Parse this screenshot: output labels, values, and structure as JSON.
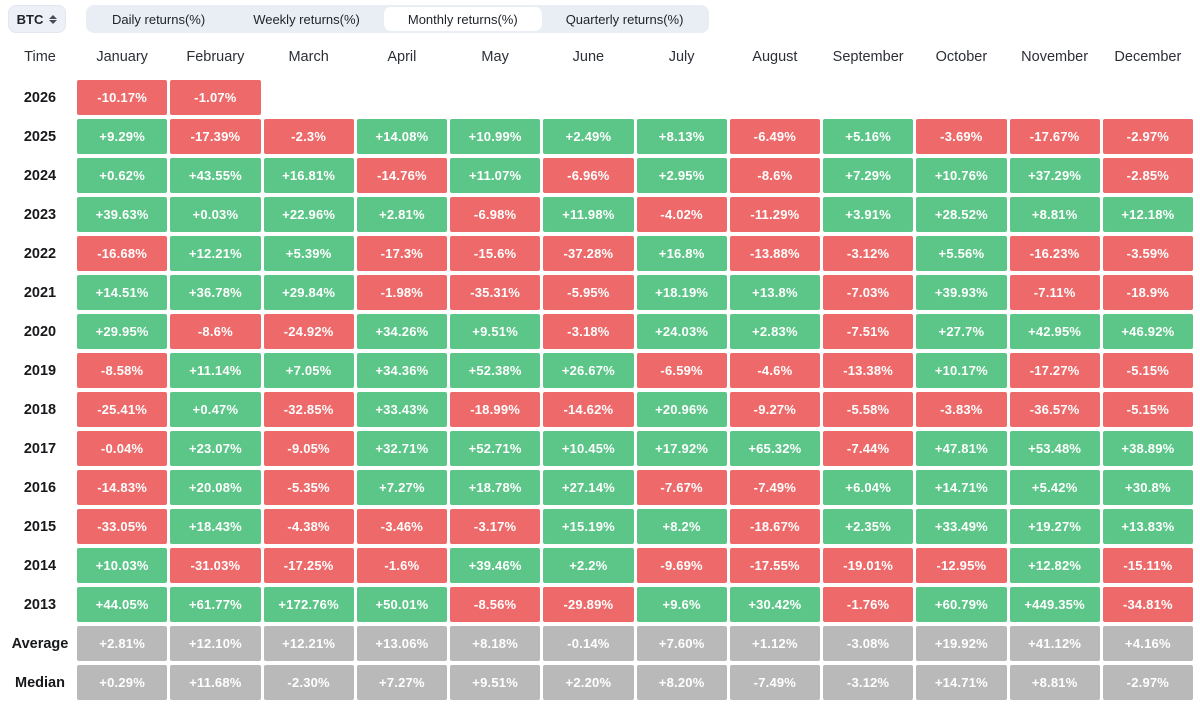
{
  "controls": {
    "symbol_select": {
      "value": "BTC"
    },
    "tabs": [
      {
        "label": "Daily returns(%)",
        "active": false
      },
      {
        "label": "Weekly returns(%)",
        "active": false
      },
      {
        "label": "Monthly returns(%)",
        "active": true
      },
      {
        "label": "Quarterly returns(%)",
        "active": false
      }
    ]
  },
  "colors": {
    "positive": "#5cc688",
    "negative": "#ee6a6a",
    "neutral": "#b9b9b9",
    "tabbar_bg": "#e9edf4",
    "active_tab_bg": "#ffffff",
    "select_bg": "#edf0f7"
  },
  "chart_data": {
    "type": "heatmap",
    "title": "Monthly returns(%)",
    "columns": [
      "Time",
      "January",
      "February",
      "March",
      "April",
      "May",
      "June",
      "July",
      "August",
      "September",
      "October",
      "November",
      "December"
    ],
    "rows": [
      {
        "label": "2026",
        "neutral": false,
        "values": [
          "-10.17%",
          "-1.07%",
          null,
          null,
          null,
          null,
          null,
          null,
          null,
          null,
          null,
          null
        ]
      },
      {
        "label": "2025",
        "neutral": false,
        "values": [
          "+9.29%",
          "-17.39%",
          "-2.3%",
          "+14.08%",
          "+10.99%",
          "+2.49%",
          "+8.13%",
          "-6.49%",
          "+5.16%",
          "-3.69%",
          "-17.67%",
          "-2.97%"
        ]
      },
      {
        "label": "2024",
        "neutral": false,
        "values": [
          "+0.62%",
          "+43.55%",
          "+16.81%",
          "-14.76%",
          "+11.07%",
          "-6.96%",
          "+2.95%",
          "-8.6%",
          "+7.29%",
          "+10.76%",
          "+37.29%",
          "-2.85%"
        ]
      },
      {
        "label": "2023",
        "neutral": false,
        "values": [
          "+39.63%",
          "+0.03%",
          "+22.96%",
          "+2.81%",
          "-6.98%",
          "+11.98%",
          "-4.02%",
          "-11.29%",
          "+3.91%",
          "+28.52%",
          "+8.81%",
          "+12.18%"
        ]
      },
      {
        "label": "2022",
        "neutral": false,
        "values": [
          "-16.68%",
          "+12.21%",
          "+5.39%",
          "-17.3%",
          "-15.6%",
          "-37.28%",
          "+16.8%",
          "-13.88%",
          "-3.12%",
          "+5.56%",
          "-16.23%",
          "-3.59%"
        ]
      },
      {
        "label": "2021",
        "neutral": false,
        "values": [
          "+14.51%",
          "+36.78%",
          "+29.84%",
          "-1.98%",
          "-35.31%",
          "-5.95%",
          "+18.19%",
          "+13.8%",
          "-7.03%",
          "+39.93%",
          "-7.11%",
          "-18.9%"
        ]
      },
      {
        "label": "2020",
        "neutral": false,
        "values": [
          "+29.95%",
          "-8.6%",
          "-24.92%",
          "+34.26%",
          "+9.51%",
          "-3.18%",
          "+24.03%",
          "+2.83%",
          "-7.51%",
          "+27.7%",
          "+42.95%",
          "+46.92%"
        ]
      },
      {
        "label": "2019",
        "neutral": false,
        "values": [
          "-8.58%",
          "+11.14%",
          "+7.05%",
          "+34.36%",
          "+52.38%",
          "+26.67%",
          "-6.59%",
          "-4.6%",
          "-13.38%",
          "+10.17%",
          "-17.27%",
          "-5.15%"
        ]
      },
      {
        "label": "2018",
        "neutral": false,
        "values": [
          "-25.41%",
          "+0.47%",
          "-32.85%",
          "+33.43%",
          "-18.99%",
          "-14.62%",
          "+20.96%",
          "-9.27%",
          "-5.58%",
          "-3.83%",
          "-36.57%",
          "-5.15%"
        ]
      },
      {
        "label": "2017",
        "neutral": false,
        "values": [
          "-0.04%",
          "+23.07%",
          "-9.05%",
          "+32.71%",
          "+52.71%",
          "+10.45%",
          "+17.92%",
          "+65.32%",
          "-7.44%",
          "+47.81%",
          "+53.48%",
          "+38.89%"
        ]
      },
      {
        "label": "2016",
        "neutral": false,
        "values": [
          "-14.83%",
          "+20.08%",
          "-5.35%",
          "+7.27%",
          "+18.78%",
          "+27.14%",
          "-7.67%",
          "-7.49%",
          "+6.04%",
          "+14.71%",
          "+5.42%",
          "+30.8%"
        ]
      },
      {
        "label": "2015",
        "neutral": false,
        "values": [
          "-33.05%",
          "+18.43%",
          "-4.38%",
          "-3.46%",
          "-3.17%",
          "+15.19%",
          "+8.2%",
          "-18.67%",
          "+2.35%",
          "+33.49%",
          "+19.27%",
          "+13.83%"
        ]
      },
      {
        "label": "2014",
        "neutral": false,
        "values": [
          "+10.03%",
          "-31.03%",
          "-17.25%",
          "-1.6%",
          "+39.46%",
          "+2.2%",
          "-9.69%",
          "-17.55%",
          "-19.01%",
          "-12.95%",
          "+12.82%",
          "-15.11%"
        ]
      },
      {
        "label": "2013",
        "neutral": false,
        "values": [
          "+44.05%",
          "+61.77%",
          "+172.76%",
          "+50.01%",
          "-8.56%",
          "-29.89%",
          "+9.6%",
          "+30.42%",
          "-1.76%",
          "+60.79%",
          "+449.35%",
          "-34.81%"
        ]
      },
      {
        "label": "Average",
        "neutral": true,
        "values": [
          "+2.81%",
          "+12.10%",
          "+12.21%",
          "+13.06%",
          "+8.18%",
          "-0.14%",
          "+7.60%",
          "+1.12%",
          "-3.08%",
          "+19.92%",
          "+41.12%",
          "+4.16%"
        ]
      },
      {
        "label": "Median",
        "neutral": true,
        "values": [
          "+0.29%",
          "+11.68%",
          "-2.30%",
          "+7.27%",
          "+9.51%",
          "+2.20%",
          "+8.20%",
          "-7.49%",
          "-3.12%",
          "+14.71%",
          "+8.81%",
          "-2.97%"
        ]
      }
    ]
  }
}
